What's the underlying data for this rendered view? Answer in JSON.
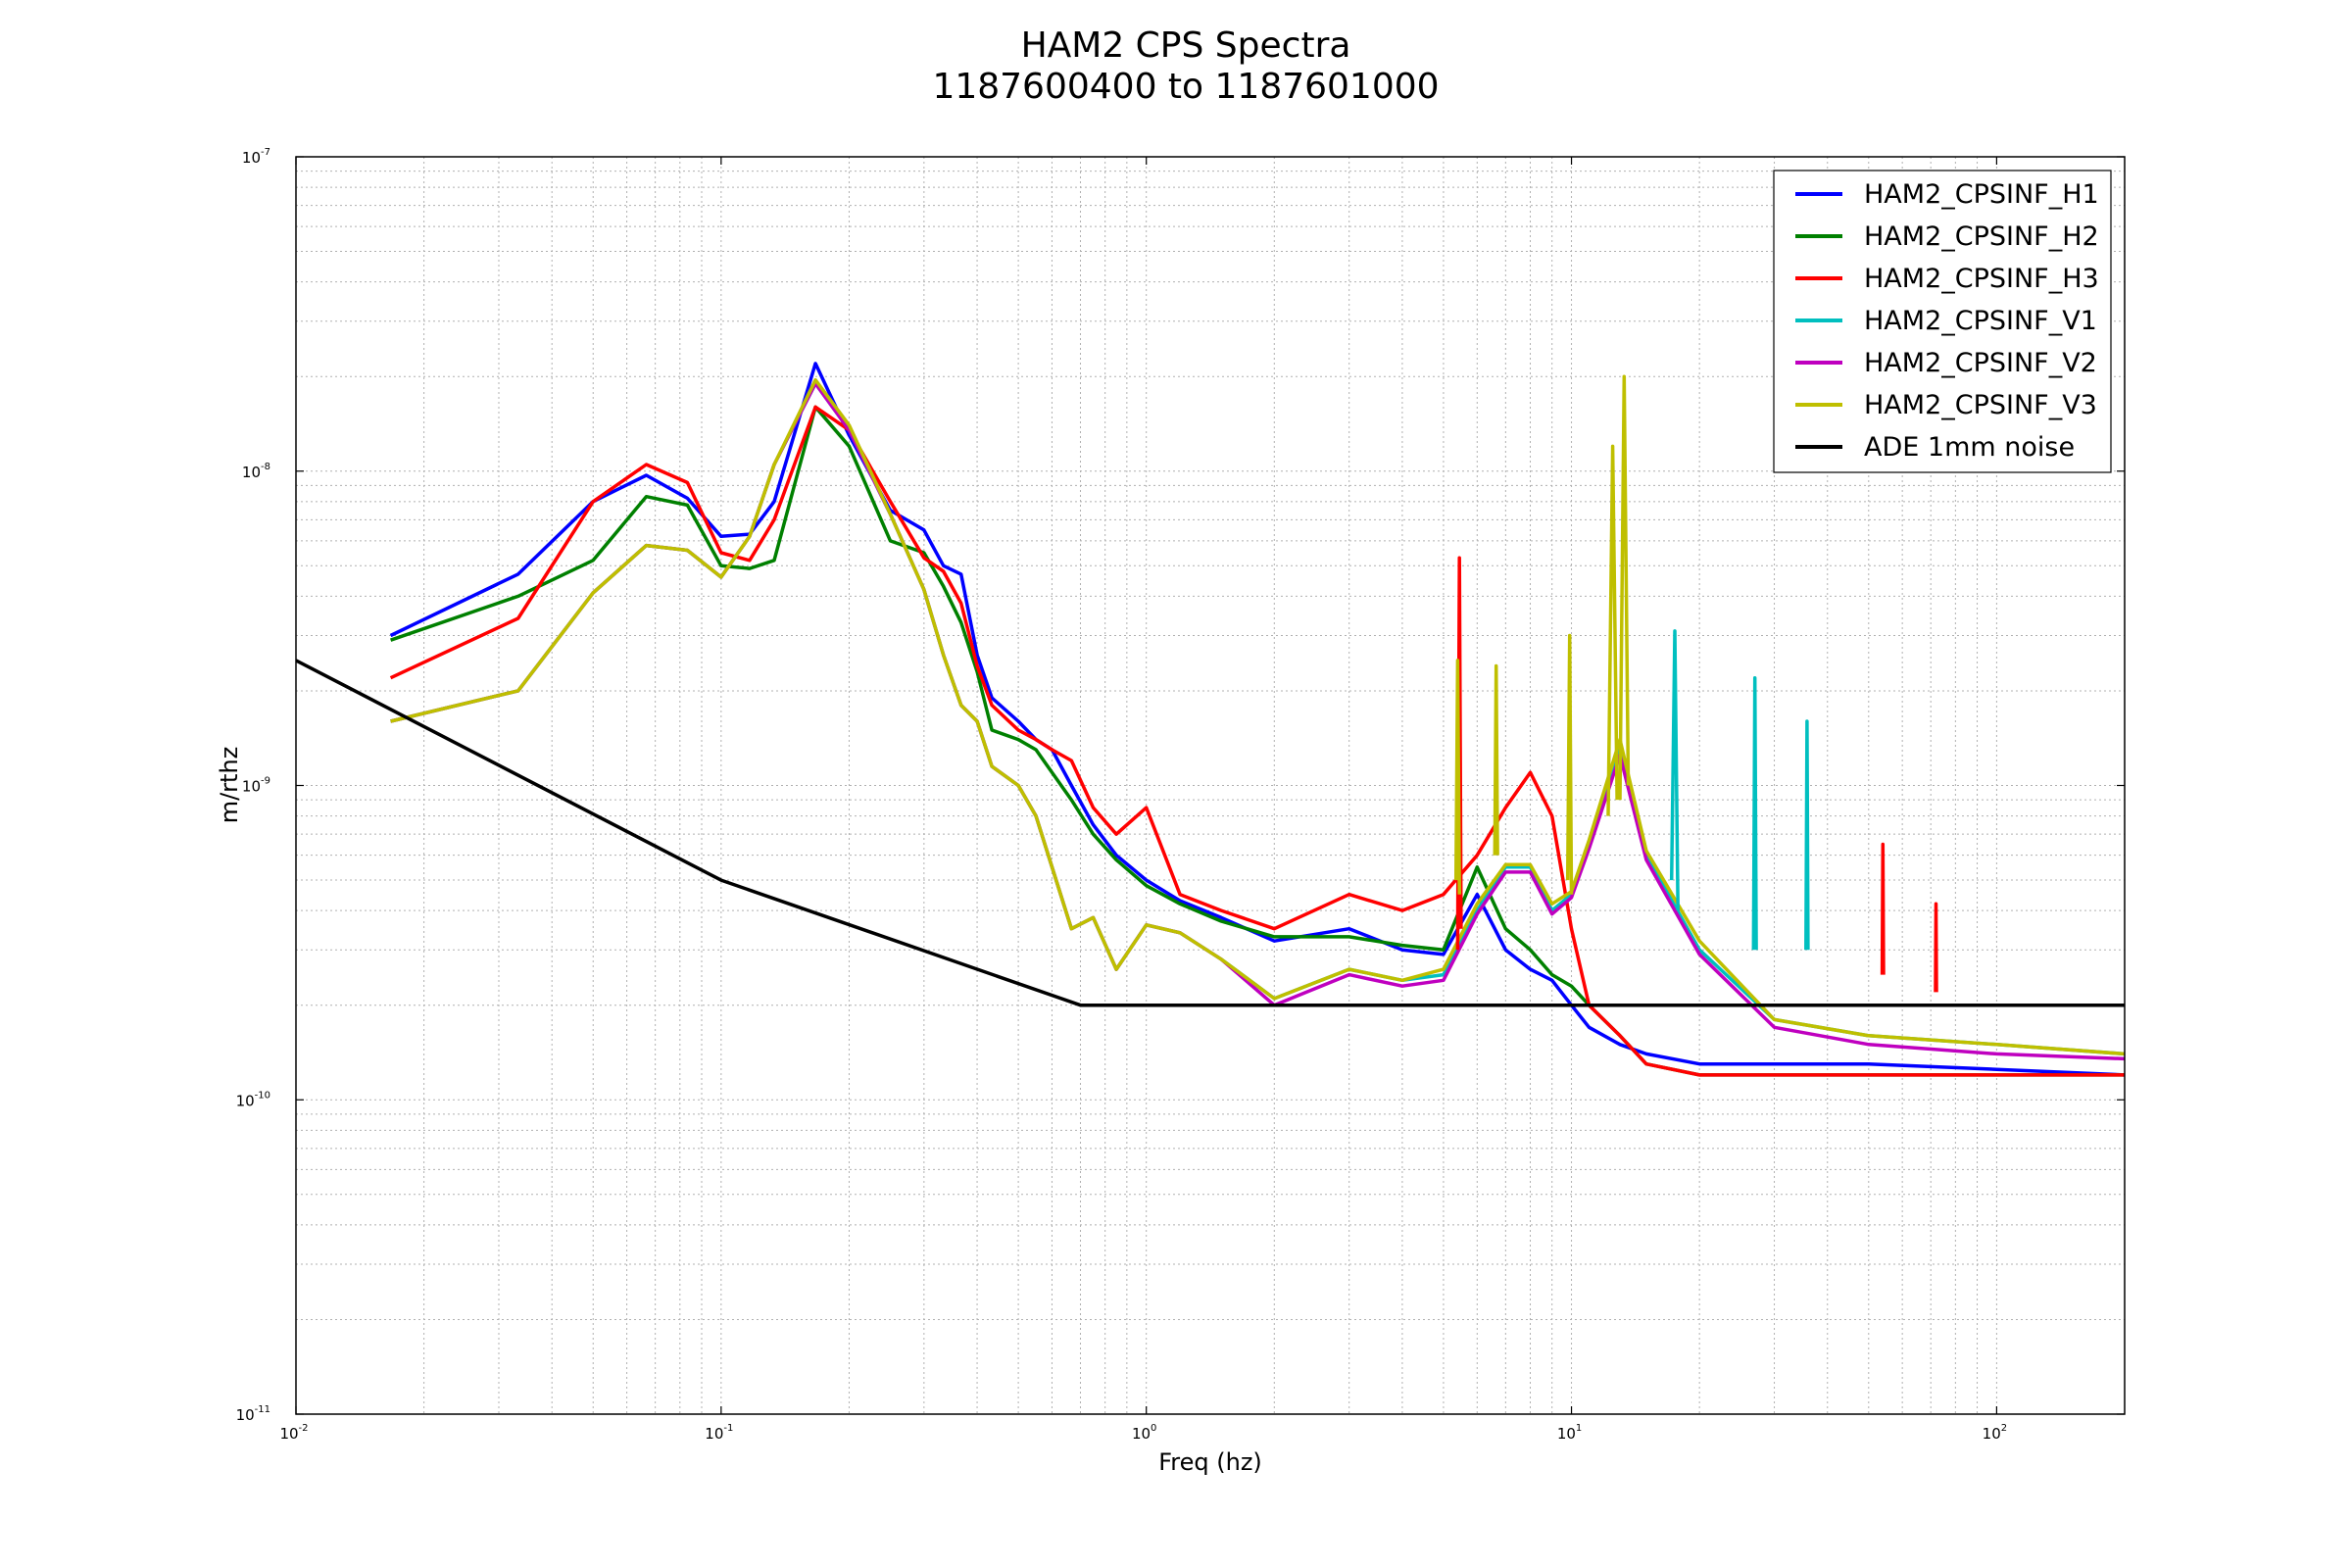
{
  "chart_data": {
    "type": "line",
    "title": "HAM2 CPS Spectra",
    "subtitle": "1187600400 to 1187601000",
    "xlabel": "Freq (hz)",
    "ylabel": "m/rthz",
    "xscale": "log",
    "yscale": "log",
    "xlim": [
      0.01,
      200
    ],
    "ylim": [
      1e-11,
      1e-07
    ],
    "grid": true,
    "legend_position": "top-right",
    "x_ticks": [
      {
        "value": 0.01,
        "base": "10",
        "exp": "-2"
      },
      {
        "value": 0.1,
        "base": "10",
        "exp": "-1"
      },
      {
        "value": 1,
        "base": "10",
        "exp": "0"
      },
      {
        "value": 10,
        "base": "10",
        "exp": "1"
      },
      {
        "value": 100,
        "base": "10",
        "exp": "2"
      }
    ],
    "y_ticks": [
      {
        "value": 1e-11,
        "base": "10",
        "exp": "-11"
      },
      {
        "value": 1e-10,
        "base": "10",
        "exp": "-10"
      },
      {
        "value": 1e-09,
        "base": "10",
        "exp": "-9"
      },
      {
        "value": 1e-08,
        "base": "10",
        "exp": "-8"
      },
      {
        "value": 1e-07,
        "base": "10",
        "exp": "-7"
      }
    ],
    "series": [
      {
        "name": "HAM2_CPSINF_H1",
        "color": "#0000ff",
        "x": [
          0.0167,
          0.0333,
          0.05,
          0.0667,
          0.0833,
          0.1,
          0.1167,
          0.1333,
          0.1667,
          0.2,
          0.25,
          0.3,
          0.3333,
          0.3667,
          0.4,
          0.4333,
          0.5,
          0.55,
          0.6,
          0.6667,
          0.75,
          0.85,
          1.0,
          1.2,
          1.5,
          2.0,
          3.0,
          4.0,
          5.0,
          6.0,
          7.0,
          8.0,
          9.0,
          10.0,
          11.0,
          13.0,
          15.0,
          20.0,
          30.0,
          50.0,
          100.0,
          200.0
        ],
        "y": [
          3e-09,
          4.7e-09,
          8e-09,
          9.7e-09,
          8.2e-09,
          6.2e-09,
          6.3e-09,
          8e-09,
          2.2e-08,
          1.3e-08,
          7.5e-09,
          6.5e-09,
          5e-09,
          4.7e-09,
          2.6e-09,
          1.9e-09,
          1.6e-09,
          1.4e-09,
          1.3e-09,
          1e-09,
          7.5e-10,
          6e-10,
          5e-10,
          4.3e-10,
          3.8e-10,
          3.2e-10,
          3.5e-10,
          3e-10,
          2.9e-10,
          4.5e-10,
          3e-10,
          2.6e-10,
          2.4e-10,
          2e-10,
          1.7e-10,
          1.5e-10,
          1.4e-10,
          1.3e-10,
          1.3e-10,
          1.3e-10,
          1.25e-10,
          1.2e-10
        ]
      },
      {
        "name": "HAM2_CPSINF_H2",
        "color": "#008000",
        "x": [
          0.0167,
          0.0333,
          0.05,
          0.0667,
          0.0833,
          0.1,
          0.1167,
          0.1333,
          0.1667,
          0.2,
          0.25,
          0.3,
          0.3333,
          0.3667,
          0.4,
          0.4333,
          0.5,
          0.55,
          0.6,
          0.6667,
          0.75,
          0.85,
          1.0,
          1.2,
          1.5,
          2.0,
          3.0,
          4.0,
          5.0,
          6.0,
          7.0,
          8.0,
          9.0,
          10.0,
          11.0,
          13.0,
          15.0,
          20.0,
          30.0,
          50.0,
          100.0,
          200.0
        ],
        "y": [
          2.9e-09,
          4e-09,
          5.2e-09,
          8.3e-09,
          7.8e-09,
          5e-09,
          4.9e-09,
          5.2e-09,
          1.6e-08,
          1.2e-08,
          6e-09,
          5.5e-09,
          4.3e-09,
          3.3e-09,
          2.3e-09,
          1.5e-09,
          1.4e-09,
          1.3e-09,
          1.1e-09,
          9e-10,
          7e-10,
          5.8e-10,
          4.8e-10,
          4.2e-10,
          3.7e-10,
          3.3e-10,
          3.3e-10,
          3.1e-10,
          3e-10,
          5.5e-10,
          3.5e-10,
          3e-10,
          2.5e-10,
          2.3e-10,
          2e-10,
          1.6e-10,
          1.3e-10,
          1.2e-10,
          1.2e-10,
          1.2e-10,
          1.2e-10,
          1.2e-10
        ]
      },
      {
        "name": "HAM2_CPSINF_H3",
        "color": "#ff0000",
        "x": [
          0.0167,
          0.0333,
          0.05,
          0.0667,
          0.0833,
          0.1,
          0.1167,
          0.1333,
          0.1667,
          0.2,
          0.25,
          0.3,
          0.3333,
          0.3667,
          0.4,
          0.4333,
          0.5,
          0.55,
          0.6,
          0.6667,
          0.75,
          0.85,
          1.0,
          1.2,
          1.5,
          2.0,
          3.0,
          4.0,
          5.0,
          6.0,
          7.0,
          8.0,
          9.0,
          10.0,
          11.0,
          13.0,
          15.0,
          20.0,
          30.0,
          50.0,
          100.0,
          200.0
        ],
        "y": [
          2.2e-09,
          3.4e-09,
          8e-09,
          1.05e-08,
          9.2e-09,
          5.5e-09,
          5.2e-09,
          7e-09,
          1.6e-08,
          1.35e-08,
          8e-09,
          5.3e-09,
          4.8e-09,
          3.8e-09,
          2.4e-09,
          1.8e-09,
          1.5e-09,
          1.4e-09,
          1.3e-09,
          1.2e-09,
          8.5e-10,
          7e-10,
          8.5e-10,
          4.5e-10,
          4e-10,
          3.5e-10,
          4.5e-10,
          4e-10,
          4.5e-10,
          6e-10,
          8.5e-10,
          1.1e-09,
          8e-10,
          3.5e-10,
          2e-10,
          1.6e-10,
          1.3e-10,
          1.2e-10,
          1.2e-10,
          1.2e-10,
          1.2e-10,
          1.2e-10
        ]
      },
      {
        "name": "HAM2_CPSINF_V1",
        "color": "#00bfbf",
        "x": [
          0.0167,
          0.0333,
          0.05,
          0.0667,
          0.0833,
          0.1,
          0.1167,
          0.1333,
          0.1667,
          0.2,
          0.25,
          0.3,
          0.3333,
          0.3667,
          0.4,
          0.4333,
          0.5,
          0.55,
          0.6,
          0.6667,
          0.75,
          0.85,
          1.0,
          1.2,
          1.5,
          2.0,
          3.0,
          4.0,
          5.0,
          6.0,
          7.0,
          8.0,
          9.0,
          10.0,
          11.0,
          13.0,
          15.0,
          20.0,
          30.0,
          50.0,
          100.0,
          200.0
        ],
        "y": [
          1.6e-09,
          2e-09,
          4.1e-09,
          5.8e-09,
          5.6e-09,
          4.6e-09,
          6.2e-09,
          1.05e-08,
          1.9e-08,
          1.35e-08,
          7.3e-09,
          4.2e-09,
          2.6e-09,
          1.8e-09,
          1.6e-09,
          1.15e-09,
          1e-09,
          8e-10,
          5.5e-10,
          3.5e-10,
          3.8e-10,
          2.6e-10,
          3.6e-10,
          3.4e-10,
          2.8e-10,
          2.1e-10,
          2.6e-10,
          2.4e-10,
          2.5e-10,
          4e-10,
          5.5e-10,
          5.5e-10,
          4e-10,
          4.5e-10,
          6.5e-10,
          1.3e-09,
          6e-10,
          3e-10,
          1.8e-10,
          1.6e-10,
          1.5e-10,
          1.4e-10
        ]
      },
      {
        "name": "HAM2_CPSINF_V2",
        "color": "#bf00bf",
        "x": [
          0.0167,
          0.0333,
          0.05,
          0.0667,
          0.0833,
          0.1,
          0.1167,
          0.1333,
          0.1667,
          0.2,
          0.25,
          0.3,
          0.3333,
          0.3667,
          0.4,
          0.4333,
          0.5,
          0.55,
          0.6,
          0.6667,
          0.75,
          0.85,
          1.0,
          1.2,
          1.5,
          2.0,
          3.0,
          4.0,
          5.0,
          6.0,
          7.0,
          8.0,
          9.0,
          10.0,
          11.0,
          13.0,
          15.0,
          20.0,
          30.0,
          50.0,
          100.0,
          200.0
        ],
        "y": [
          1.6e-09,
          2e-09,
          4.1e-09,
          5.8e-09,
          5.6e-09,
          4.6e-09,
          6.2e-09,
          1.05e-08,
          1.9e-08,
          1.35e-08,
          7.3e-09,
          4.2e-09,
          2.6e-09,
          1.8e-09,
          1.6e-09,
          1.15e-09,
          1e-09,
          8e-10,
          5.5e-10,
          3.5e-10,
          3.8e-10,
          2.6e-10,
          3.6e-10,
          3.4e-10,
          2.8e-10,
          2e-10,
          2.5e-10,
          2.3e-10,
          2.4e-10,
          3.9e-10,
          5.3e-10,
          5.3e-10,
          3.9e-10,
          4.4e-10,
          6.3e-10,
          1.25e-09,
          5.8e-10,
          2.9e-10,
          1.7e-10,
          1.5e-10,
          1.4e-10,
          1.35e-10
        ]
      },
      {
        "name": "HAM2_CPSINF_V3",
        "color": "#bfbf00",
        "x": [
          0.0167,
          0.0333,
          0.05,
          0.0667,
          0.0833,
          0.1,
          0.1167,
          0.1333,
          0.1667,
          0.2,
          0.25,
          0.3,
          0.3333,
          0.3667,
          0.4,
          0.4333,
          0.5,
          0.55,
          0.6,
          0.6667,
          0.75,
          0.85,
          1.0,
          1.2,
          1.5,
          2.0,
          3.0,
          4.0,
          5.0,
          6.0,
          7.0,
          8.0,
          9.0,
          10.0,
          11.0,
          13.0,
          15.0,
          20.0,
          30.0,
          50.0,
          100.0,
          200.0
        ],
        "y": [
          1.6e-09,
          2e-09,
          4.1e-09,
          5.8e-09,
          5.6e-09,
          4.6e-09,
          6.2e-09,
          1.05e-08,
          1.95e-08,
          1.4e-08,
          7.3e-09,
          4.2e-09,
          2.6e-09,
          1.8e-09,
          1.6e-09,
          1.15e-09,
          1e-09,
          8e-10,
          5.5e-10,
          3.5e-10,
          3.8e-10,
          2.6e-10,
          3.6e-10,
          3.4e-10,
          2.8e-10,
          2.1e-10,
          2.6e-10,
          2.4e-10,
          2.6e-10,
          4.2e-10,
          5.6e-10,
          5.6e-10,
          4.2e-10,
          4.6e-10,
          6.7e-10,
          1.4e-09,
          6.2e-10,
          3.2e-10,
          1.8e-10,
          1.6e-10,
          1.5e-10,
          1.4e-10
        ]
      },
      {
        "name": "ADE 1mm noise",
        "color": "#000000",
        "x": [
          0.01,
          0.1,
          0.7,
          200.0
        ],
        "y": [
          2.5e-09,
          5e-10,
          2e-10,
          2e-10
        ]
      }
    ],
    "peaks": [
      {
        "series": "HAM2_CPSINF_H3",
        "x": [
          5.4,
          5.45,
          5.5
        ],
        "y": [
          3e-10,
          5.3e-09,
          3.5e-10
        ]
      },
      {
        "series": "HAM2_CPSINF_V3",
        "x": [
          5.35,
          5.4,
          5.45
        ],
        "y": [
          5e-10,
          2.5e-09,
          4.5e-10
        ]
      },
      {
        "series": "HAM2_CPSINF_V3",
        "x": [
          6.6,
          6.65,
          6.7
        ],
        "y": [
          6e-10,
          2.4e-09,
          6e-10
        ]
      },
      {
        "series": "HAM2_CPSINF_V3",
        "x": [
          9.8,
          9.9,
          10.0
        ],
        "y": [
          5e-10,
          3e-09,
          4.5e-10
        ]
      },
      {
        "series": "HAM2_CPSINF_V3",
        "x": [
          12.2,
          12.5,
          12.8
        ],
        "y": [
          8e-10,
          1.2e-08,
          9e-10
        ]
      },
      {
        "series": "HAM2_CPSINF_V3",
        "x": [
          13.0,
          13.3,
          13.6
        ],
        "y": [
          9e-10,
          2e-08,
          1e-09
        ]
      },
      {
        "series": "HAM2_CPSINF_V1",
        "x": [
          17.2,
          17.5,
          17.8
        ],
        "y": [
          5e-10,
          3.1e-09,
          4e-10
        ]
      },
      {
        "series": "HAM2_CPSINF_V1",
        "x": [
          26.8,
          27.0,
          27.2
        ],
        "y": [
          3e-10,
          2.2e-09,
          3e-10
        ]
      },
      {
        "series": "HAM2_CPSINF_V1",
        "x": [
          35.6,
          35.8,
          36.0
        ],
        "y": [
          3e-10,
          1.6e-09,
          3e-10
        ]
      },
      {
        "series": "HAM2_CPSINF_H3",
        "x": [
          53.8,
          54.0,
          54.2
        ],
        "y": [
          2.5e-10,
          6.5e-10,
          2.5e-10
        ]
      },
      {
        "series": "HAM2_CPSINF_H3",
        "x": [
          71.8,
          72.0,
          72.2
        ],
        "y": [
          2.2e-10,
          4.2e-10,
          2.2e-10
        ]
      }
    ]
  }
}
